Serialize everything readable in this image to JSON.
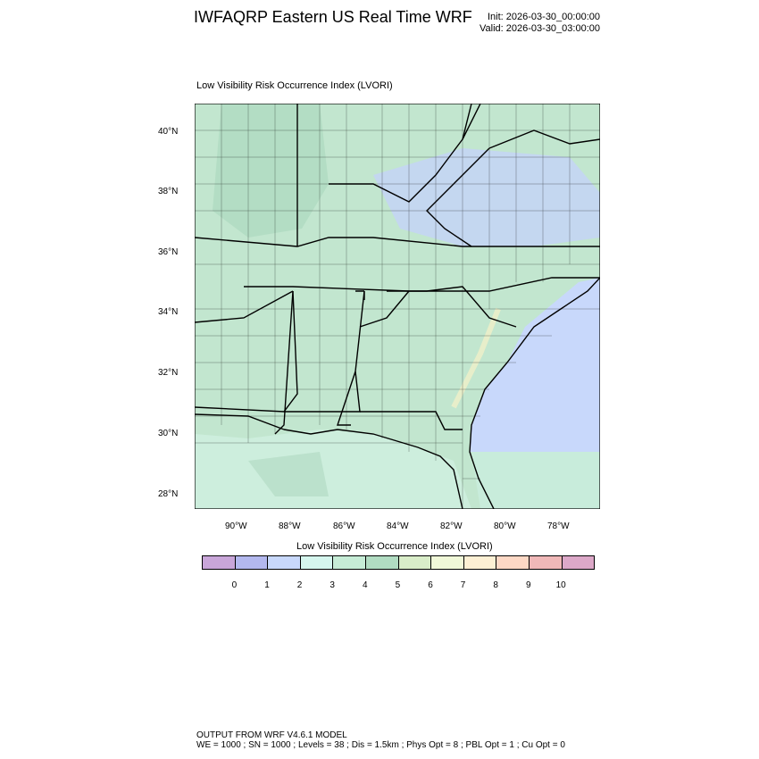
{
  "header": {
    "title": "IWFAQRP Eastern US Real Time WRF",
    "init": "Init: 2026-03-30_00:00:00",
    "valid": "Valid: 2026-03-30_03:00:00"
  },
  "plot": {
    "subtitle": "Low Visibility Risk Occurrence Index   (LVORI)",
    "lat_ticks": [
      "40°N",
      "38°N",
      "36°N",
      "34°N",
      "32°N",
      "30°N",
      "28°N"
    ],
    "lon_ticks": [
      "90°W",
      "88°W",
      "86°W",
      "84°W",
      "82°W",
      "80°W",
      "78°W"
    ]
  },
  "colorbar": {
    "title": "Low Visibility Risk Occurrence Index  (LVORI)",
    "labels": [
      "0",
      "1",
      "2",
      "3",
      "4",
      "5",
      "6",
      "7",
      "8",
      "9",
      "10"
    ],
    "colors": [
      "#c9a6d9",
      "#b3b8ee",
      "#c8d8fb",
      "#d5f6ee",
      "#c6ecd6",
      "#b1dcc2",
      "#d9edc9",
      "#f0f8d8",
      "#fdf0d4",
      "#fdd8c5",
      "#f0b8b8",
      "#dca8c8"
    ]
  },
  "footer": {
    "line1": "OUTPUT FROM WRF V4.6.1 MODEL",
    "line2": "WE = 1000 ; SN = 1000 ; Levels = 38 ; Dis = 1.5km ; Phys Opt = 8 ; PBL Opt = 1 ; Cu Opt = 0"
  }
}
